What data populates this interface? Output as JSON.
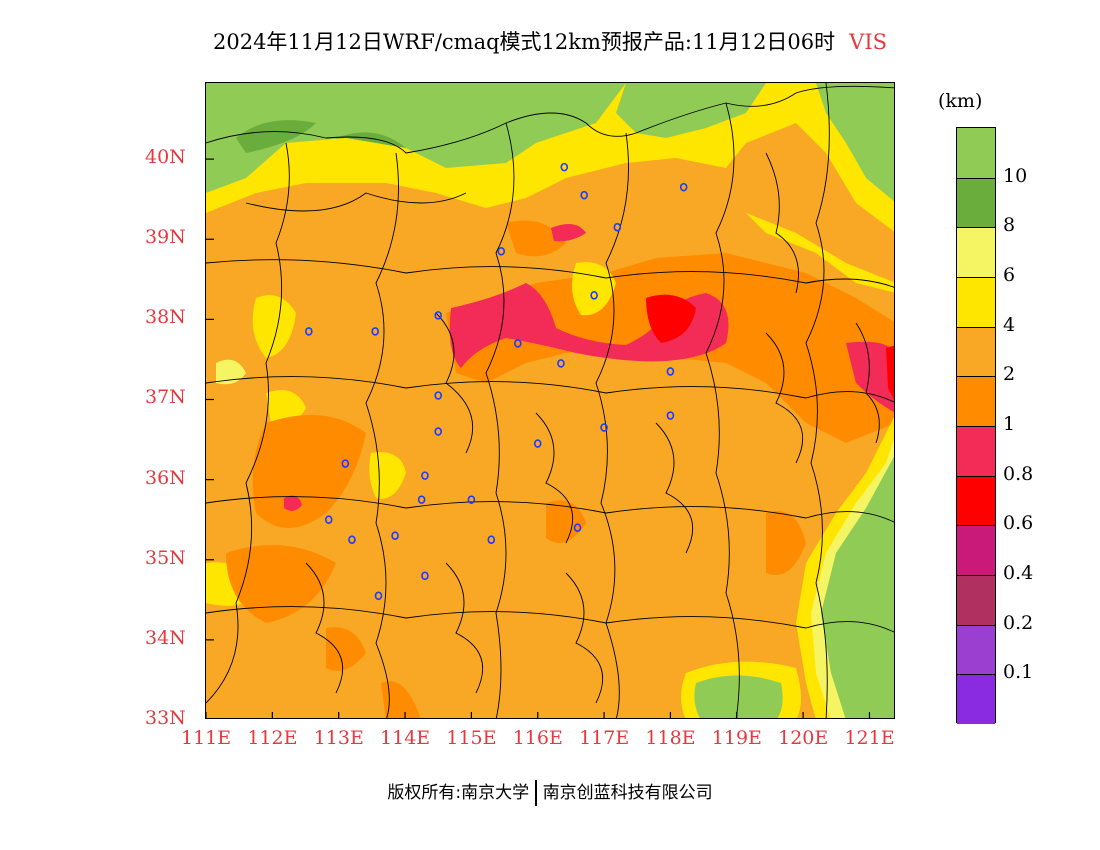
{
  "title": "2024年11月12日WRF/cmaq模式12km预报产品:11月12日06时",
  "variable": "VIS",
  "legend": {
    "unit": "(km)",
    "bins": [
      {
        "color": "#8a2be2"
      },
      {
        "color": "#9b3fd1"
      },
      {
        "color": "#b03060"
      },
      {
        "color": "#c91a7a"
      },
      {
        "color": "#ff0000"
      },
      {
        "color": "#f22c56"
      },
      {
        "color": "#ff8b00"
      },
      {
        "color": "#f8a825"
      },
      {
        "color": "#ffe600"
      },
      {
        "color": "#f5f564"
      },
      {
        "color": "#6aad3c"
      },
      {
        "color": "#90cc55"
      }
    ],
    "labels": [
      "0.1",
      "0.2",
      "0.4",
      "0.6",
      "0.8",
      "1",
      "2",
      "4",
      "6",
      "8",
      "10"
    ]
  },
  "axes": {
    "x_ticks": [
      "111E",
      "112E",
      "113E",
      "114E",
      "115E",
      "116E",
      "117E",
      "118E",
      "119E",
      "120E",
      "121E"
    ],
    "y_ticks": [
      "33N",
      "34N",
      "35N",
      "36N",
      "37N",
      "38N",
      "39N",
      "40N"
    ],
    "x_range": [
      111,
      121.4
    ],
    "y_range": [
      33,
      40.95
    ]
  },
  "cities": [
    [
      116.4,
      39.9
    ],
    [
      116.7,
      39.55
    ],
    [
      118.2,
      39.65
    ],
    [
      117.2,
      39.15
    ],
    [
      115.45,
      38.85
    ],
    [
      116.85,
      38.3
    ],
    [
      114.5,
      38.05
    ],
    [
      115.7,
      37.7
    ],
    [
      116.35,
      37.45
    ],
    [
      118.0,
      37.35
    ],
    [
      112.55,
      37.85
    ],
    [
      113.55,
      37.85
    ],
    [
      114.5,
      37.05
    ],
    [
      114.5,
      36.6
    ],
    [
      117.0,
      36.65
    ],
    [
      118.0,
      36.8
    ],
    [
      116.0,
      36.45
    ],
    [
      113.1,
      36.2
    ],
    [
      114.3,
      36.05
    ],
    [
      114.25,
      35.75
    ],
    [
      115.0,
      35.75
    ],
    [
      112.85,
      35.5
    ],
    [
      113.2,
      35.25
    ],
    [
      113.85,
      35.3
    ],
    [
      115.3,
      35.25
    ],
    [
      116.6,
      35.4
    ],
    [
      114.3,
      34.8
    ],
    [
      113.6,
      34.55
    ]
  ],
  "footer": {
    "left": "版权所有:南京大学",
    "right": "南京创蓝科技有限公司"
  }
}
